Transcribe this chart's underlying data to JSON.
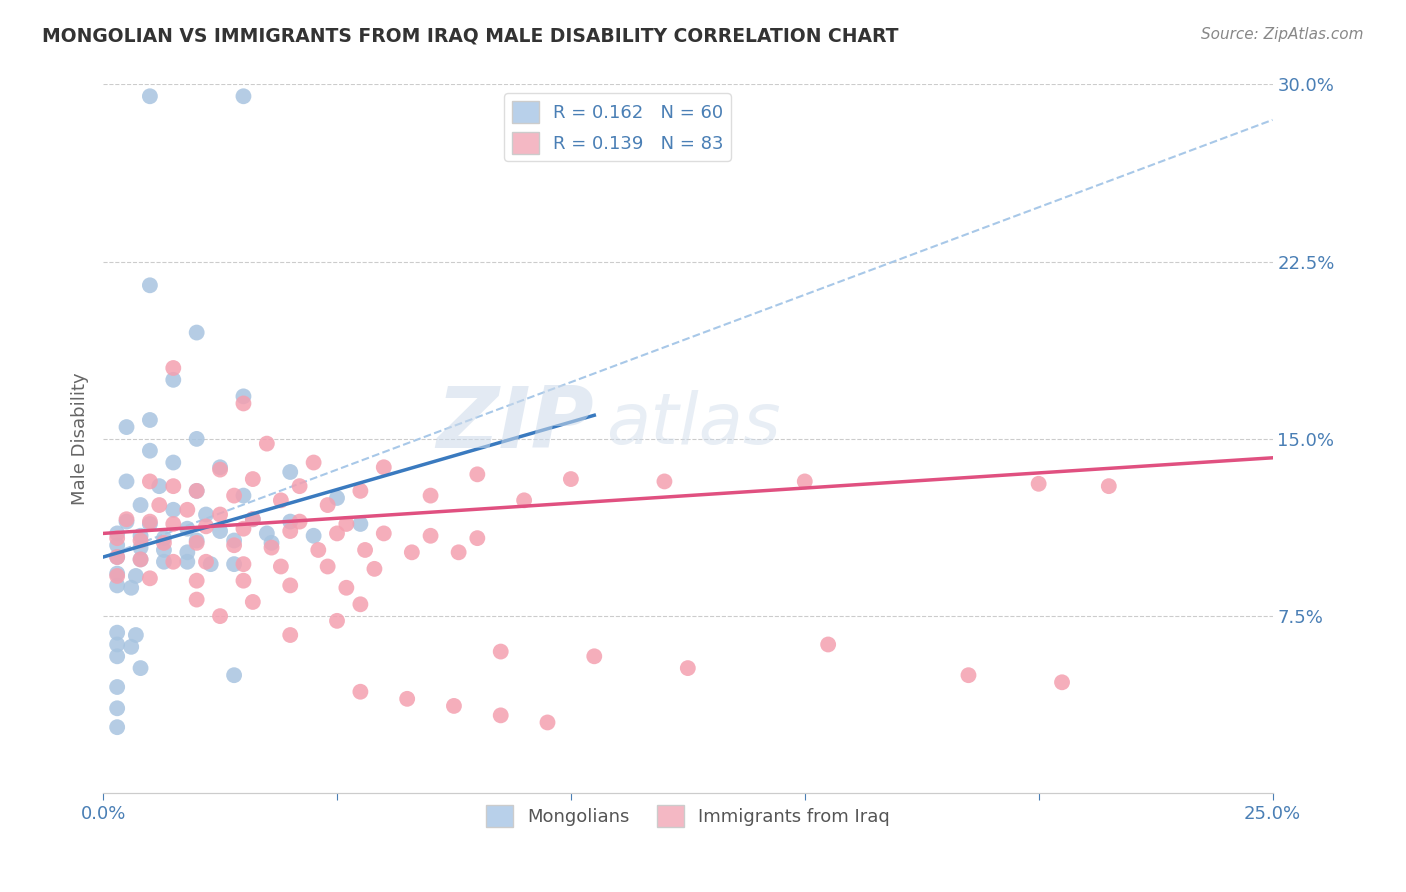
{
  "title": "MONGOLIAN VS IMMIGRANTS FROM IRAQ MALE DISABILITY CORRELATION CHART",
  "source": "Source: ZipAtlas.com",
  "ylabel": "Male Disability",
  "xlim": [
    0.0,
    0.25
  ],
  "ylim": [
    0.0,
    0.3
  ],
  "xtick_positions": [
    0.0,
    0.05,
    0.1,
    0.15,
    0.2,
    0.25
  ],
  "xtick_labels": [
    "0.0%",
    "",
    "",
    "",
    "",
    "25.0%"
  ],
  "ytick_positions": [
    0.0,
    0.075,
    0.15,
    0.225,
    0.3
  ],
  "ytick_labels": [
    "",
    "7.5%",
    "15.0%",
    "22.5%",
    "30.0%"
  ],
  "color_mongolian": "#a8c4e0",
  "color_iraq": "#f4a0b0",
  "color_line_mongolian_solid": "#3a7abf",
  "color_line_iraq_solid": "#e05080",
  "color_line_dashed": "#a8c8e8",
  "legend_color1": "#b8d0ea",
  "legend_color2": "#f4b8c4",
  "watermark": "ZIPatlas",
  "title_color": "#333333",
  "axis_label_color": "#4a7fb5",
  "tick_color": "#4a7fb5",
  "blue_line_x0": 0.0,
  "blue_line_y0": 0.1,
  "blue_line_x1": 0.105,
  "blue_line_y1": 0.16,
  "pink_line_x0": 0.0,
  "pink_line_y0": 0.11,
  "pink_line_x1": 0.25,
  "pink_line_y1": 0.142,
  "dashed_line_x0": 0.0,
  "dashed_line_y0": 0.1,
  "dashed_line_x1": 0.25,
  "dashed_line_y1": 0.285,
  "mongolian_points": [
    [
      0.01,
      0.295
    ],
    [
      0.03,
      0.295
    ],
    [
      0.01,
      0.215
    ],
    [
      0.02,
      0.195
    ],
    [
      0.015,
      0.175
    ],
    [
      0.03,
      0.168
    ],
    [
      0.01,
      0.158
    ],
    [
      0.005,
      0.155
    ],
    [
      0.02,
      0.15
    ],
    [
      0.01,
      0.145
    ],
    [
      0.015,
      0.14
    ],
    [
      0.025,
      0.138
    ],
    [
      0.04,
      0.136
    ],
    [
      0.005,
      0.132
    ],
    [
      0.012,
      0.13
    ],
    [
      0.02,
      0.128
    ],
    [
      0.03,
      0.126
    ],
    [
      0.05,
      0.125
    ],
    [
      0.008,
      0.122
    ],
    [
      0.015,
      0.12
    ],
    [
      0.022,
      0.118
    ],
    [
      0.032,
      0.116
    ],
    [
      0.04,
      0.115
    ],
    [
      0.055,
      0.114
    ],
    [
      0.005,
      0.115
    ],
    [
      0.01,
      0.114
    ],
    [
      0.018,
      0.112
    ],
    [
      0.025,
      0.111
    ],
    [
      0.035,
      0.11
    ],
    [
      0.045,
      0.109
    ],
    [
      0.003,
      0.11
    ],
    [
      0.008,
      0.109
    ],
    [
      0.013,
      0.108
    ],
    [
      0.02,
      0.107
    ],
    [
      0.028,
      0.107
    ],
    [
      0.036,
      0.106
    ],
    [
      0.003,
      0.105
    ],
    [
      0.008,
      0.104
    ],
    [
      0.013,
      0.103
    ],
    [
      0.018,
      0.102
    ],
    [
      0.003,
      0.1
    ],
    [
      0.008,
      0.099
    ],
    [
      0.013,
      0.098
    ],
    [
      0.018,
      0.098
    ],
    [
      0.023,
      0.097
    ],
    [
      0.028,
      0.097
    ],
    [
      0.003,
      0.093
    ],
    [
      0.007,
      0.092
    ],
    [
      0.003,
      0.088
    ],
    [
      0.006,
      0.087
    ],
    [
      0.003,
      0.068
    ],
    [
      0.007,
      0.067
    ],
    [
      0.003,
      0.063
    ],
    [
      0.006,
      0.062
    ],
    [
      0.003,
      0.058
    ],
    [
      0.008,
      0.053
    ],
    [
      0.028,
      0.05
    ],
    [
      0.003,
      0.045
    ],
    [
      0.003,
      0.036
    ],
    [
      0.003,
      0.028
    ]
  ],
  "iraq_points": [
    [
      0.015,
      0.18
    ],
    [
      0.03,
      0.165
    ],
    [
      0.035,
      0.148
    ],
    [
      0.045,
      0.14
    ],
    [
      0.06,
      0.138
    ],
    [
      0.08,
      0.135
    ],
    [
      0.1,
      0.133
    ],
    [
      0.12,
      0.132
    ],
    [
      0.15,
      0.132
    ],
    [
      0.2,
      0.131
    ],
    [
      0.215,
      0.13
    ],
    [
      0.025,
      0.137
    ],
    [
      0.032,
      0.133
    ],
    [
      0.042,
      0.13
    ],
    [
      0.055,
      0.128
    ],
    [
      0.07,
      0.126
    ],
    [
      0.09,
      0.124
    ],
    [
      0.01,
      0.132
    ],
    [
      0.015,
      0.13
    ],
    [
      0.02,
      0.128
    ],
    [
      0.028,
      0.126
    ],
    [
      0.038,
      0.124
    ],
    [
      0.048,
      0.122
    ],
    [
      0.012,
      0.122
    ],
    [
      0.018,
      0.12
    ],
    [
      0.025,
      0.118
    ],
    [
      0.032,
      0.116
    ],
    [
      0.042,
      0.115
    ],
    [
      0.052,
      0.114
    ],
    [
      0.005,
      0.116
    ],
    [
      0.01,
      0.115
    ],
    [
      0.015,
      0.114
    ],
    [
      0.022,
      0.113
    ],
    [
      0.03,
      0.112
    ],
    [
      0.04,
      0.111
    ],
    [
      0.05,
      0.11
    ],
    [
      0.06,
      0.11
    ],
    [
      0.07,
      0.109
    ],
    [
      0.08,
      0.108
    ],
    [
      0.003,
      0.108
    ],
    [
      0.008,
      0.107
    ],
    [
      0.013,
      0.106
    ],
    [
      0.02,
      0.106
    ],
    [
      0.028,
      0.105
    ],
    [
      0.036,
      0.104
    ],
    [
      0.046,
      0.103
    ],
    [
      0.056,
      0.103
    ],
    [
      0.066,
      0.102
    ],
    [
      0.076,
      0.102
    ],
    [
      0.003,
      0.1
    ],
    [
      0.008,
      0.099
    ],
    [
      0.015,
      0.098
    ],
    [
      0.022,
      0.098
    ],
    [
      0.03,
      0.097
    ],
    [
      0.038,
      0.096
    ],
    [
      0.048,
      0.096
    ],
    [
      0.058,
      0.095
    ],
    [
      0.003,
      0.092
    ],
    [
      0.01,
      0.091
    ],
    [
      0.02,
      0.09
    ],
    [
      0.03,
      0.09
    ],
    [
      0.04,
      0.088
    ],
    [
      0.052,
      0.087
    ],
    [
      0.02,
      0.082
    ],
    [
      0.032,
      0.081
    ],
    [
      0.055,
      0.08
    ],
    [
      0.025,
      0.075
    ],
    [
      0.05,
      0.073
    ],
    [
      0.04,
      0.067
    ],
    [
      0.155,
      0.063
    ],
    [
      0.085,
      0.06
    ],
    [
      0.105,
      0.058
    ],
    [
      0.125,
      0.053
    ],
    [
      0.185,
      0.05
    ],
    [
      0.205,
      0.047
    ],
    [
      0.055,
      0.043
    ],
    [
      0.065,
      0.04
    ],
    [
      0.075,
      0.037
    ],
    [
      0.085,
      0.033
    ],
    [
      0.095,
      0.03
    ]
  ]
}
